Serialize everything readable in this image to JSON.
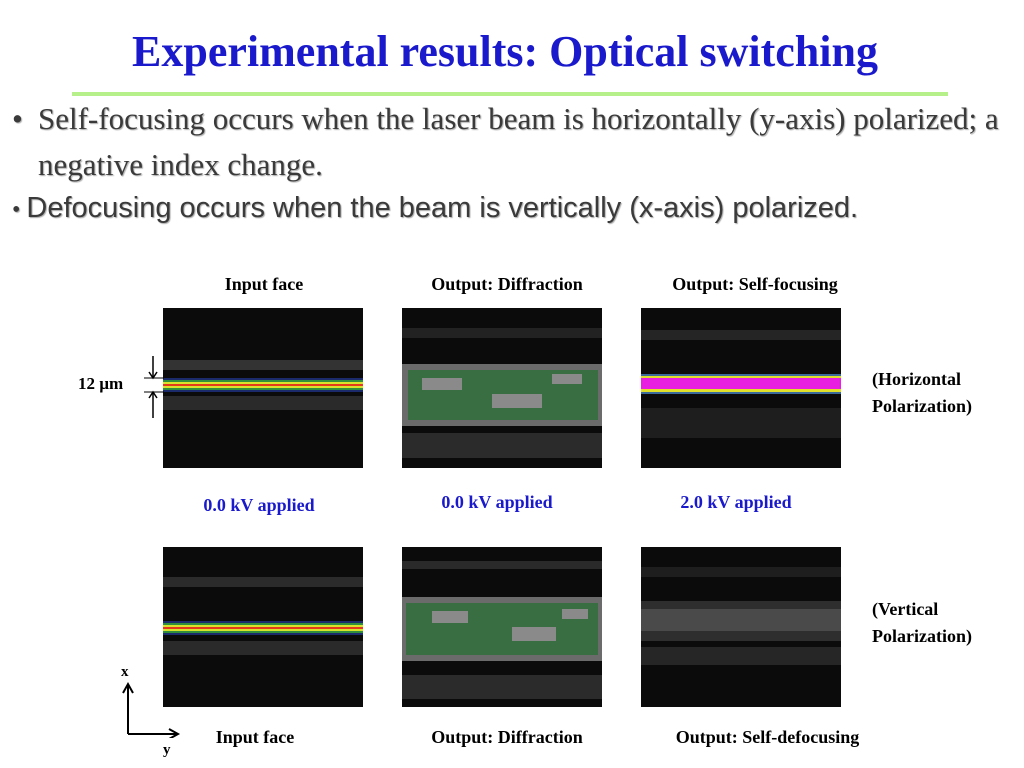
{
  "slide": {
    "title": "Experimental results: Optical switching",
    "bullets": [
      "Self-focusing occurs when the laser beam is horizontally (y-axis) polarized; a negative index change.",
      "Defocusing occurs when the beam is vertically (x-axis) polarized."
    ]
  },
  "figure": {
    "top_headers": [
      "Input face",
      "Output: Diffraction",
      "Output: Self-focusing"
    ],
    "bottom_headers": [
      "Input face",
      "Output: Diffraction",
      "Output: Self-defocusing"
    ],
    "voltage_labels": [
      "0.0 kV applied",
      "0.0 kV applied",
      "2.0 kV applied"
    ],
    "scale_label": "12 µm",
    "row_labels": {
      "horizontal_line1": "(Horizontal",
      "horizontal_line2": "Polarization)",
      "vertical_line1": "(Vertical",
      "vertical_line2": "Polarization)"
    },
    "axes": {
      "x": "x",
      "y": "y"
    },
    "colors": {
      "title": "#1a1acc",
      "voltage": "#1a1acc",
      "rule": "#b6f08a"
    }
  }
}
